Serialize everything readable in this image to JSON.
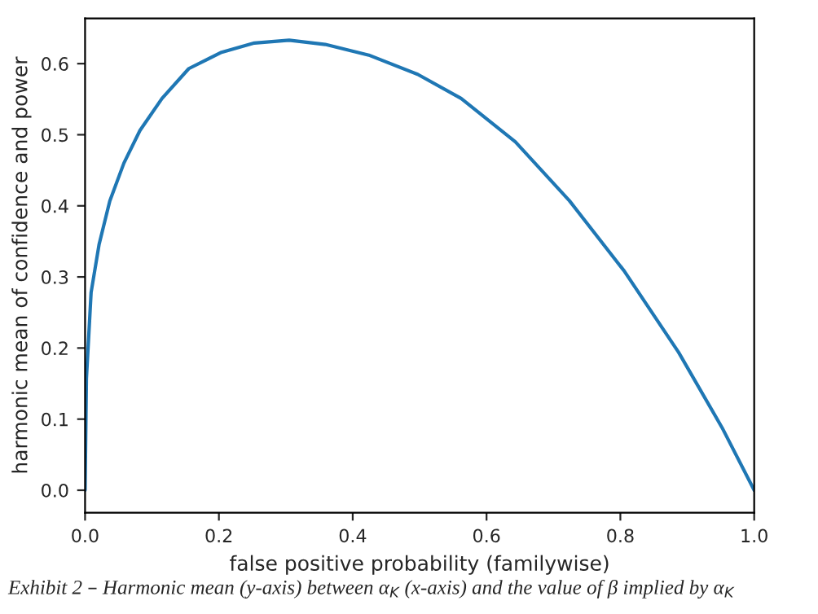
{
  "chart_data": {
    "type": "line",
    "xlabel": "false positive probability (familywise)",
    "ylabel": "harmonic mean of confidence and power",
    "annotations": [
      "Exhibit 2 – Harmonic mean (y-axis) between α$_{K}$ (x-axis) and the value of β implied by α$_{K}$"
    ],
    "x": [
      0.0,
      0.002,
      0.009,
      0.021,
      0.037,
      0.058,
      0.082,
      0.115,
      0.155,
      0.204,
      0.253,
      0.305,
      0.359,
      0.424,
      0.497,
      0.562,
      0.643,
      0.724,
      0.806,
      0.887,
      0.952,
      1.0
    ],
    "series": [
      {
        "color": "#1f77b4",
        "values": [
          0.0,
          0.157,
          0.278,
          0.346,
          0.407,
          0.46,
          0.506,
          0.551,
          0.593,
          0.616,
          0.629,
          0.633,
          0.627,
          0.612,
          0.585,
          0.551,
          0.49,
          0.407,
          0.308,
          0.194,
          0.088,
          0.0
        ]
      }
    ],
    "xlim": [
      0,
      1
    ],
    "ylim": [
      -0.0316,
      0.6636
    ],
    "xticks": [
      {
        "value": 0,
        "label": "0.0"
      },
      {
        "value": 0.2,
        "label": "0.2"
      },
      {
        "value": 0.4,
        "label": "0.4"
      },
      {
        "value": 0.6,
        "label": "0.6"
      },
      {
        "value": 0.8,
        "label": "0.8"
      },
      {
        "value": 1,
        "label": "1.0"
      }
    ],
    "yticks": [
      {
        "value": 0,
        "label": "0.0"
      },
      {
        "value": 0.1,
        "label": "0.1"
      },
      {
        "value": 0.2,
        "label": "0.2"
      },
      {
        "value": 0.3,
        "label": "0.3"
      },
      {
        "value": 0.4,
        "label": "0.4"
      },
      {
        "value": 0.5,
        "label": "0.5"
      },
      {
        "value": 0.6,
        "label": "0.6"
      }
    ],
    "grid": false
  }
}
